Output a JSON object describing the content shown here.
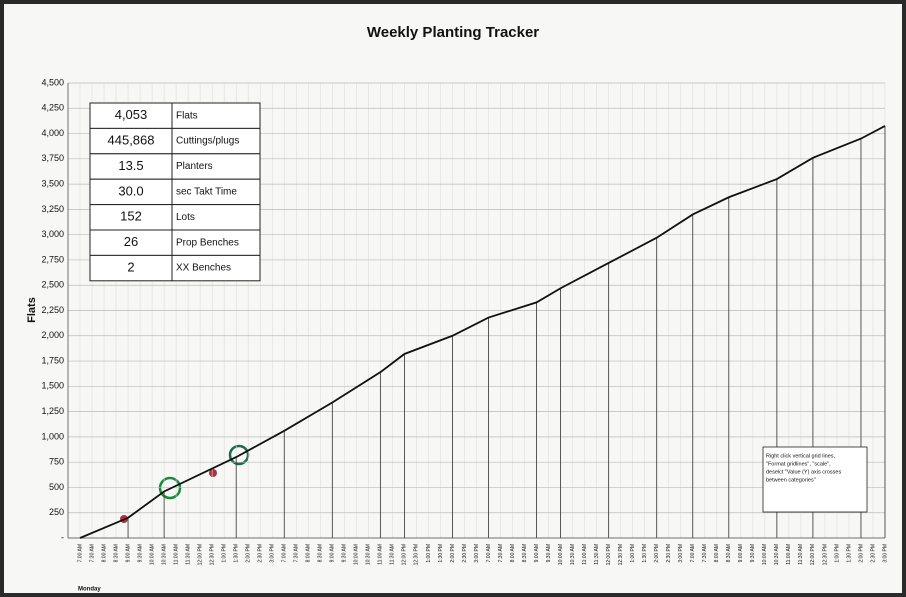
{
  "chart_data": {
    "type": "line",
    "title": "Weekly Planting Tracker",
    "y_label": "Flats",
    "x_group_label": "Monday",
    "categories": [
      "7:00 AM",
      "7:30 AM",
      "8:00 AM",
      "8:30 AM",
      "9:00 AM",
      "9:30 AM",
      "10:00 AM",
      "10:30 AM",
      "11:00 AM",
      "11:30 AM",
      "12:00 PM",
      "12:30 PM",
      "1:00 PM",
      "1:30 PM",
      "2:00 PM",
      "2:30 PM",
      "3:00 PM",
      "7:00 AM",
      "7:30 AM",
      "8:00 AM",
      "8:30 AM",
      "9:00 AM",
      "9:30 AM",
      "10:00 AM",
      "10:30 AM",
      "11:00 AM",
      "11:30 AM",
      "12:00 PM",
      "12:30 PM",
      "1:00 PM",
      "1:30 PM",
      "2:00 PM",
      "2:30 PM",
      "3:00 PM",
      "7:00 AM",
      "7:30 AM",
      "8:00 AM",
      "8:30 AM",
      "9:00 AM",
      "9:30 AM",
      "10:00 AM",
      "10:30 AM",
      "11:00 AM",
      "11:30 AM",
      "12:00 PM",
      "12:30 PM",
      "1:00 PM",
      "1:30 PM",
      "2:00 PM",
      "2:30 PM",
      "3:00 PM",
      "7:00 AM",
      "7:30 AM",
      "8:00 AM",
      "8:30 AM",
      "9:00 AM",
      "9:30 AM",
      "10:00 AM",
      "10:30 AM",
      "11:00 AM",
      "11:30 AM",
      "12:00 PM",
      "12:30 PM",
      "1:00 PM",
      "1:30 PM",
      "2:00 PM",
      "2:30 PM",
      "3:00 PM"
    ],
    "xlim": [
      0,
      67
    ],
    "series": [
      {
        "name": "Flats",
        "color": "#111111",
        "x": [
          0,
          4,
          7,
          13,
          17,
          21,
          25,
          27,
          31,
          34,
          38,
          40,
          44,
          48,
          51,
          54,
          58,
          61,
          65,
          67
        ],
        "values": [
          0,
          200,
          460,
          800,
          1060,
          1340,
          1640,
          1820,
          2000,
          2180,
          2330,
          2470,
          2720,
          2970,
          3200,
          3370,
          3550,
          3760,
          3950,
          4075
        ]
      }
    ],
    "ylim": [
      0,
      4500
    ],
    "yticks": [
      {
        "value": 0,
        "label": "-"
      },
      250,
      500,
      750,
      {
        "value": 1000,
        "label": "1,000"
      },
      {
        "value": 1250,
        "label": "1,250"
      },
      {
        "value": 1500,
        "label": "1,500"
      },
      {
        "value": 1750,
        "label": "1,750"
      },
      {
        "value": 2000,
        "label": "2,000"
      },
      {
        "value": 2250,
        "label": "2,250"
      },
      {
        "value": 2500,
        "label": "2,500"
      },
      {
        "value": 2750,
        "label": "2,750"
      },
      {
        "value": 3000,
        "label": "3,000"
      },
      {
        "value": 3250,
        "label": "3,250"
      },
      {
        "value": 3500,
        "label": "3,500"
      },
      {
        "value": 3750,
        "label": "3,750"
      },
      {
        "value": 4000,
        "label": "4,000"
      },
      {
        "value": 4250,
        "label": "4,250"
      },
      {
        "value": 4500,
        "label": "4,500"
      }
    ],
    "grid": true,
    "table": [
      [
        "4,053",
        "Flats"
      ],
      [
        "445,868",
        "Cuttings/plugs"
      ],
      [
        "13.5",
        "Planters"
      ],
      [
        "30.0",
        "sec Takt Time"
      ],
      [
        "152",
        "Lots"
      ],
      [
        "26",
        "Prop Benches"
      ],
      [
        "2",
        "XX Benches"
      ]
    ],
    "note": [
      "Right click vertical grid lines,",
      "\"Format gridlines\", \"scale\",",
      "deselct \"Value (Y) axis crosses",
      "between categories\""
    ]
  }
}
